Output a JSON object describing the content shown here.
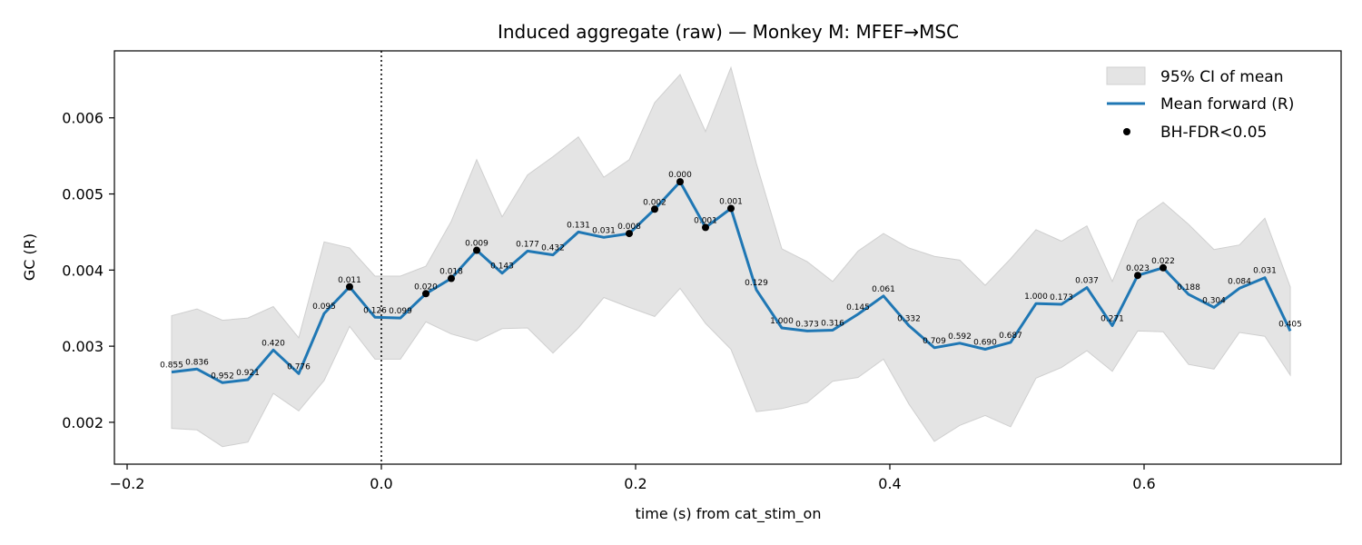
{
  "chart_data": {
    "type": "line",
    "title": "Induced aggregate (raw) — Monkey M: MFEF→MSC",
    "xlabel": "time (s) from cat_stim_on",
    "ylabel": "GC (R)",
    "xlim": [
      -0.21,
      0.755
    ],
    "ylim": [
      0.00145,
      0.00688
    ],
    "xticks": [
      -0.2,
      0.0,
      0.2,
      0.4,
      0.6
    ],
    "xtick_labels": [
      "−0.2",
      "0.0",
      "0.2",
      "0.4",
      "0.6"
    ],
    "yticks": [
      0.002,
      0.003,
      0.004,
      0.005,
      0.006
    ],
    "ytick_labels": [
      "0.002",
      "0.003",
      "0.004",
      "0.005",
      "0.006"
    ],
    "vline_x": 0.0,
    "legend_position": "top-right",
    "legend": [
      "95% CI of mean",
      "Mean forward (R)",
      "BH-FDR<0.05"
    ],
    "series": [
      {
        "name": "Mean forward (R)",
        "color": "#1f77b4",
        "x": [
          -0.165,
          -0.145,
          -0.125,
          -0.105,
          -0.085,
          -0.065,
          -0.045,
          -0.025,
          -0.005,
          0.015,
          0.035,
          0.055,
          0.075,
          0.095,
          0.115,
          0.135,
          0.155,
          0.175,
          0.195,
          0.215,
          0.235,
          0.255,
          0.275,
          0.295,
          0.315,
          0.335,
          0.355,
          0.375,
          0.395,
          0.415,
          0.435,
          0.455,
          0.475,
          0.495,
          0.515,
          0.535,
          0.555,
          0.575,
          0.595,
          0.615,
          0.635,
          0.655,
          0.675,
          0.695,
          0.715
        ],
        "y": [
          0.00266,
          0.0027,
          0.00252,
          0.00256,
          0.00295,
          0.00264,
          0.00343,
          0.00378,
          0.00338,
          0.00337,
          0.00369,
          0.00389,
          0.00426,
          0.00396,
          0.00425,
          0.0042,
          0.0045,
          0.00443,
          0.00448,
          0.0048,
          0.00516,
          0.00456,
          0.00481,
          0.00374,
          0.00324,
          0.0032,
          0.00321,
          0.00342,
          0.00366,
          0.00327,
          0.00298,
          0.00304,
          0.00296,
          0.00305,
          0.00356,
          0.00355,
          0.00377,
          0.00327,
          0.00393,
          0.00403,
          0.00368,
          0.00351,
          0.00376,
          0.0039,
          0.0032
        ]
      },
      {
        "name": "95% CI of mean",
        "color": "#e4e4e4",
        "upper": [
          0.0034,
          0.00349,
          0.00334,
          0.00337,
          0.00352,
          0.00311,
          0.00437,
          0.00429,
          0.00392,
          0.00392,
          0.00405,
          0.00464,
          0.00545,
          0.0047,
          0.00525,
          0.00549,
          0.00575,
          0.00522,
          0.00545,
          0.0062,
          0.00657,
          0.00582,
          0.00666,
          0.0054,
          0.00428,
          0.00411,
          0.00385,
          0.00425,
          0.00448,
          0.00429,
          0.00418,
          0.00413,
          0.0038,
          0.00415,
          0.00453,
          0.00438,
          0.00458,
          0.00385,
          0.00465,
          0.00489,
          0.0046,
          0.00427,
          0.00433,
          0.00468,
          0.00378
        ],
        "lower": [
          0.00192,
          0.0019,
          0.00168,
          0.00174,
          0.00238,
          0.00215,
          0.00255,
          0.00326,
          0.00283,
          0.00283,
          0.00332,
          0.00316,
          0.00307,
          0.00323,
          0.00324,
          0.00291,
          0.00324,
          0.00364,
          0.00351,
          0.00339,
          0.00376,
          0.0033,
          0.00296,
          0.00214,
          0.00218,
          0.00226,
          0.00254,
          0.00259,
          0.00283,
          0.00224,
          0.00175,
          0.00196,
          0.00209,
          0.00194,
          0.00258,
          0.00272,
          0.00294,
          0.00267,
          0.0032,
          0.00319,
          0.00276,
          0.0027,
          0.00318,
          0.00313,
          0.00262
        ]
      }
    ],
    "p_values": [
      "0.855",
      "0.836",
      "0.952",
      "0.921",
      "0.420",
      "0.776",
      "0.095",
      "0.011",
      "0.126",
      "0.099",
      "0.020",
      "0.018",
      "0.009",
      "0.143",
      "0.177",
      "0.432",
      "0.131",
      "0.031",
      "0.008",
      "0.002",
      "0.000",
      "0.001",
      "0.001",
      "0.129",
      "1.000",
      "0.373",
      "0.316",
      "0.145",
      "0.061",
      "0.332",
      "0.709",
      "0.592",
      "0.690",
      "0.687",
      "1.000",
      "0.173",
      "0.037",
      "0.271",
      "0.023",
      "0.022",
      "0.188",
      "0.304",
      "0.084",
      "0.031",
      "0.405"
    ],
    "significant": [
      false,
      false,
      false,
      false,
      false,
      false,
      false,
      true,
      false,
      false,
      true,
      true,
      true,
      false,
      false,
      false,
      false,
      false,
      true,
      true,
      true,
      true,
      true,
      false,
      false,
      false,
      false,
      false,
      false,
      false,
      false,
      false,
      false,
      false,
      false,
      false,
      false,
      false,
      true,
      true,
      false,
      false,
      false,
      false,
      false
    ],
    "marker_color": "#000000"
  }
}
